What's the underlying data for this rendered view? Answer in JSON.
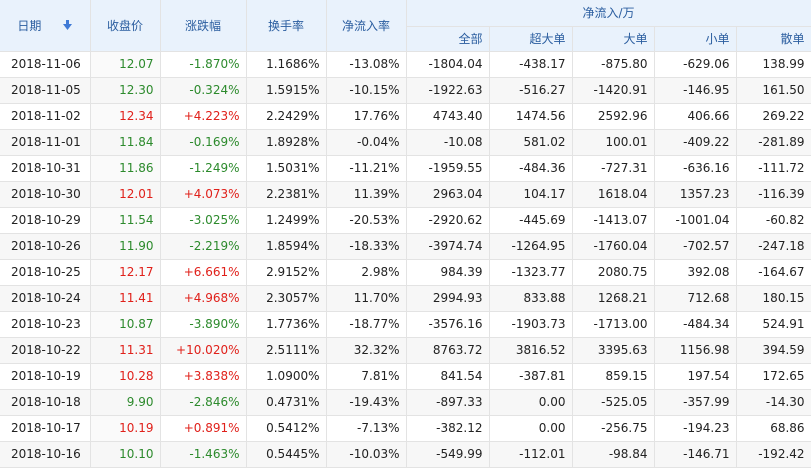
{
  "header": {
    "date": "日期",
    "close": "收盘价",
    "change": "涨跌幅",
    "turnover": "换手率",
    "net_rate": "净流入率",
    "group": "净流入/万",
    "all": "全部",
    "super_large": "超大单",
    "large": "大单",
    "small": "小单",
    "retail": "散单"
  },
  "icons": {
    "sort": "sort-down-arrow-icon"
  },
  "colors": {
    "up": "#e0201a",
    "down": "#2c8a2c",
    "header_text": "#2a5d9f",
    "header_bg": "#e9f2fc"
  },
  "rows": [
    {
      "date": "2018-11-06",
      "close": "12.07",
      "change": "-1.870%",
      "turnover": "1.1686%",
      "net_rate": "-13.08%",
      "all": "-1804.04",
      "super_large": "-438.17",
      "large": "-875.80",
      "small": "-629.06",
      "retail": "138.99",
      "dir": "down"
    },
    {
      "date": "2018-11-05",
      "close": "12.30",
      "change": "-0.324%",
      "turnover": "1.5915%",
      "net_rate": "-10.15%",
      "all": "-1922.63",
      "super_large": "-516.27",
      "large": "-1420.91",
      "small": "-146.95",
      "retail": "161.50",
      "dir": "down"
    },
    {
      "date": "2018-11-02",
      "close": "12.34",
      "change": "+4.223%",
      "turnover": "2.2429%",
      "net_rate": "17.76%",
      "all": "4743.40",
      "super_large": "1474.56",
      "large": "2592.96",
      "small": "406.66",
      "retail": "269.22",
      "dir": "up"
    },
    {
      "date": "2018-11-01",
      "close": "11.84",
      "change": "-0.169%",
      "turnover": "1.8928%",
      "net_rate": "-0.04%",
      "all": "-10.08",
      "super_large": "581.02",
      "large": "100.01",
      "small": "-409.22",
      "retail": "-281.89",
      "dir": "down"
    },
    {
      "date": "2018-10-31",
      "close": "11.86",
      "change": "-1.249%",
      "turnover": "1.5031%",
      "net_rate": "-11.21%",
      "all": "-1959.55",
      "super_large": "-484.36",
      "large": "-727.31",
      "small": "-636.16",
      "retail": "-111.72",
      "dir": "down"
    },
    {
      "date": "2018-10-30",
      "close": "12.01",
      "change": "+4.073%",
      "turnover": "2.2381%",
      "net_rate": "11.39%",
      "all": "2963.04",
      "super_large": "104.17",
      "large": "1618.04",
      "small": "1357.23",
      "retail": "-116.39",
      "dir": "up"
    },
    {
      "date": "2018-10-29",
      "close": "11.54",
      "change": "-3.025%",
      "turnover": "1.2499%",
      "net_rate": "-20.53%",
      "all": "-2920.62",
      "super_large": "-445.69",
      "large": "-1413.07",
      "small": "-1001.04",
      "retail": "-60.82",
      "dir": "down"
    },
    {
      "date": "2018-10-26",
      "close": "11.90",
      "change": "-2.219%",
      "turnover": "1.8594%",
      "net_rate": "-18.33%",
      "all": "-3974.74",
      "super_large": "-1264.95",
      "large": "-1760.04",
      "small": "-702.57",
      "retail": "-247.18",
      "dir": "down"
    },
    {
      "date": "2018-10-25",
      "close": "12.17",
      "change": "+6.661%",
      "turnover": "2.9152%",
      "net_rate": "2.98%",
      "all": "984.39",
      "super_large": "-1323.77",
      "large": "2080.75",
      "small": "392.08",
      "retail": "-164.67",
      "dir": "up"
    },
    {
      "date": "2018-10-24",
      "close": "11.41",
      "change": "+4.968%",
      "turnover": "2.3057%",
      "net_rate": "11.70%",
      "all": "2994.93",
      "super_large": "833.88",
      "large": "1268.21",
      "small": "712.68",
      "retail": "180.15",
      "dir": "up"
    },
    {
      "date": "2018-10-23",
      "close": "10.87",
      "change": "-3.890%",
      "turnover": "1.7736%",
      "net_rate": "-18.77%",
      "all": "-3576.16",
      "super_large": "-1903.73",
      "large": "-1713.00",
      "small": "-484.34",
      "retail": "524.91",
      "dir": "down"
    },
    {
      "date": "2018-10-22",
      "close": "11.31",
      "change": "+10.020%",
      "turnover": "2.5111%",
      "net_rate": "32.32%",
      "all": "8763.72",
      "super_large": "3816.52",
      "large": "3395.63",
      "small": "1156.98",
      "retail": "394.59",
      "dir": "up"
    },
    {
      "date": "2018-10-19",
      "close": "10.28",
      "change": "+3.838%",
      "turnover": "1.0900%",
      "net_rate": "7.81%",
      "all": "841.54",
      "super_large": "-387.81",
      "large": "859.15",
      "small": "197.54",
      "retail": "172.65",
      "dir": "up"
    },
    {
      "date": "2018-10-18",
      "close": "9.90",
      "change": "-2.846%",
      "turnover": "0.4731%",
      "net_rate": "-19.43%",
      "all": "-897.33",
      "super_large": "0.00",
      "large": "-525.05",
      "small": "-357.99",
      "retail": "-14.30",
      "dir": "down"
    },
    {
      "date": "2018-10-17",
      "close": "10.19",
      "change": "+0.891%",
      "turnover": "0.5412%",
      "net_rate": "-7.13%",
      "all": "-382.12",
      "super_large": "0.00",
      "large": "-256.75",
      "small": "-194.23",
      "retail": "68.86",
      "dir": "up"
    },
    {
      "date": "2018-10-16",
      "close": "10.10",
      "change": "-1.463%",
      "turnover": "0.5445%",
      "net_rate": "-10.03%",
      "all": "-549.99",
      "super_large": "-112.01",
      "large": "-98.84",
      "small": "-146.71",
      "retail": "-192.42",
      "dir": "down"
    }
  ]
}
